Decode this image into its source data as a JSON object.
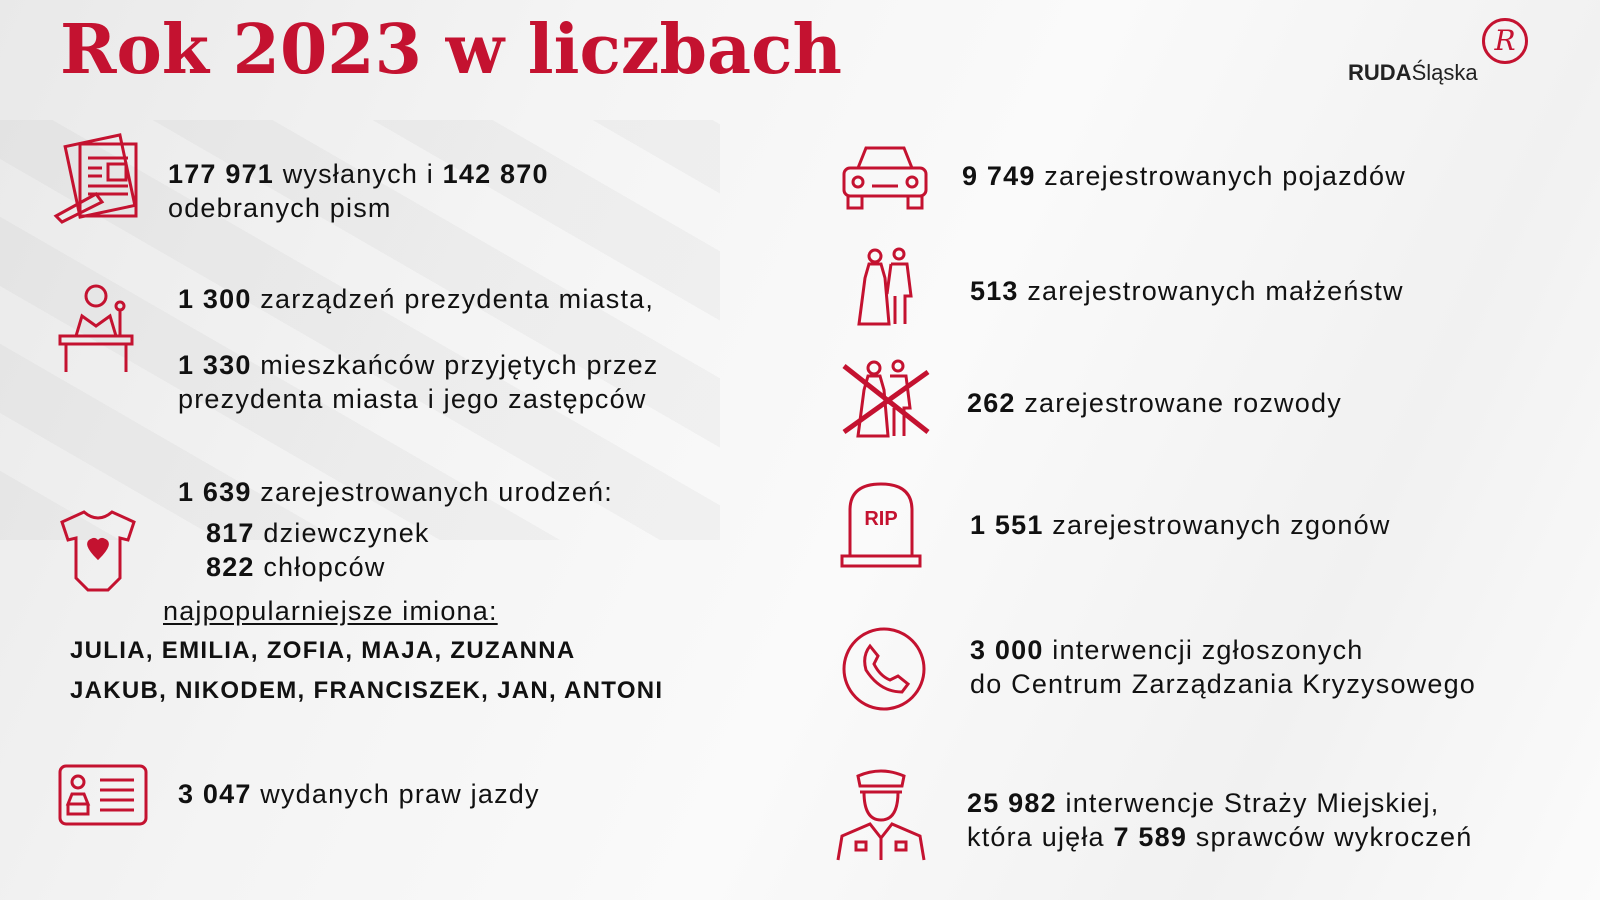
{
  "title": "Rok 2023 w liczbach",
  "logo": {
    "bold": "RUDA",
    "rest": "Śląska",
    "mark": "R"
  },
  "accent_color": "#c41230",
  "left": {
    "letters": {
      "n1": "177 971",
      "t1": " wysłanych i ",
      "n2": "142 870",
      "t2": "odebranych pism",
      "icon": "documents-pencil-icon"
    },
    "orders": {
      "n": "1 300",
      "t": " zarządzeń prezydenta miasta,",
      "icon": "speaker-at-desk-icon"
    },
    "residents": {
      "n": "1 330",
      "t1": " mieszkańców przyjętych przez",
      "t2": "prezydenta miasta i jego zastępców"
    },
    "births": {
      "n": "1 639",
      "t": " zarejestrowanych urodzeń:",
      "girls_n": "817",
      "girls_t": " dziewczynek",
      "boys_n": "822",
      "boys_t": " chłopców",
      "icon": "baby-onesie-icon"
    },
    "popular": {
      "label": "najpopularniejsze imiona:",
      "girls": "JULIA, EMILIA, ZOFIA, MAJA, ZUZANNA",
      "boys": "JAKUB, NIKODEM, FRANCISZEK, JAN, ANTONI"
    },
    "licenses": {
      "n": "3  047",
      "t": " wydanych praw jazdy",
      "icon": "driving-license-icon"
    }
  },
  "right": {
    "vehicles": {
      "n": "9 749",
      "t": " zarejestrowanych pojazdów",
      "icon": "car-icon"
    },
    "marriages": {
      "n": "513",
      "t": " zarejestrowanych małżeństw",
      "icon": "wedding-couple-icon"
    },
    "divorces": {
      "n": "262",
      "t": " zarejestrowane rozwody",
      "icon": "crossed-couple-icon"
    },
    "deaths": {
      "n": "1 551",
      "t": "  zarejestrowanych zgonów",
      "icon": "tombstone-icon",
      "tomb_text": "RIP"
    },
    "crisis": {
      "n": "3  000",
      "t1": " interwencji zgłoszonych",
      "t2": "do Centrum Zarządzania Kryzysowego",
      "icon": "phone-icon"
    },
    "guard": {
      "n1": "25 982",
      "t1": " interwencje Straży Miejskiej,",
      "t2a": "która ujęła ",
      "n2": "7 589",
      "t2b": " sprawców wykroczeń",
      "icon": "police-officer-icon"
    }
  }
}
